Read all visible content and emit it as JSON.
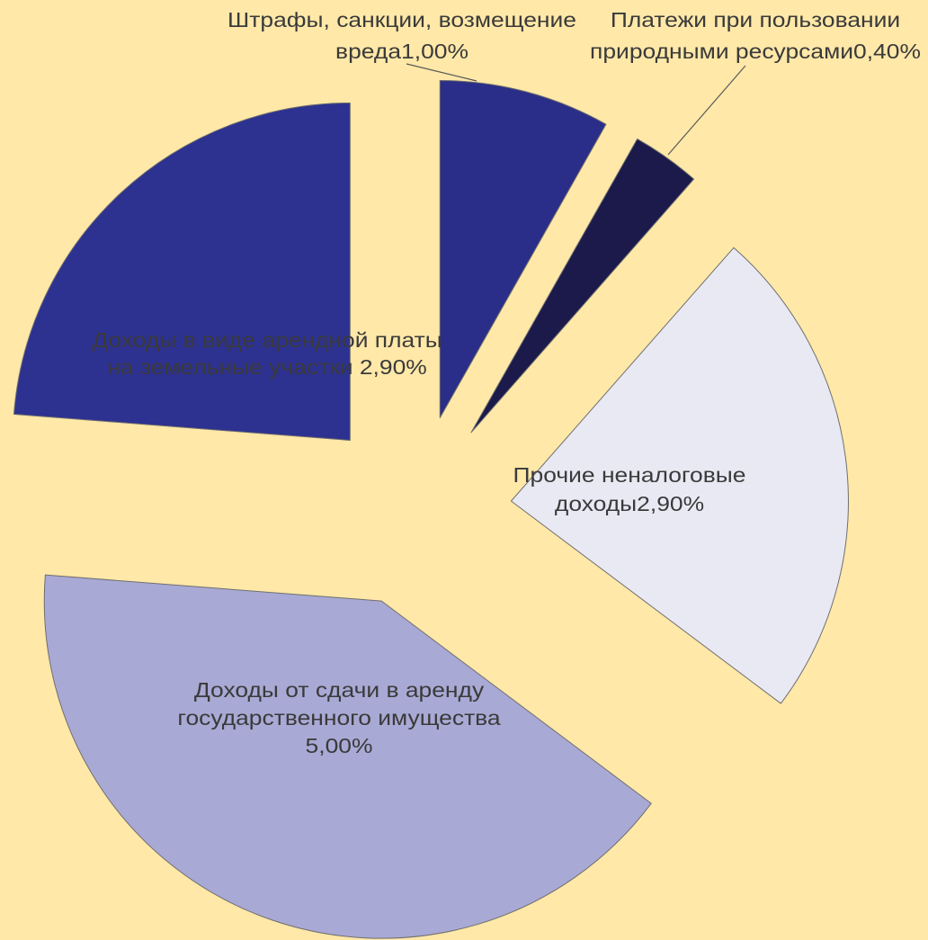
{
  "background": "#FFE8A8",
  "chart_data": {
    "type": "pie",
    "exploded": true,
    "legend": "none",
    "slices": [
      {
        "value": 1.0,
        "label_lines": [
          "Штрафы, санкции, возмещение",
          "вреда1,00%"
        ],
        "color": "#2B2E88",
        "label_position": "outside"
      },
      {
        "value": 0.4,
        "label_lines": [
          "Платежи при пользовании",
          "природными ресурсами0,40%"
        ],
        "color": "#1B1A4B",
        "label_position": "outside"
      },
      {
        "value": 2.9,
        "label_lines": [
          "Прочие неналоговые",
          "доходы2,90%"
        ],
        "color": "#E9E9F4",
        "label_position": "inside"
      },
      {
        "value": 5.0,
        "label_lines": [
          "Доходы от сдачи в аренду",
          "государственного имущества",
          "5,00%"
        ],
        "color": "#A9A9D5",
        "label_position": "inside"
      },
      {
        "value": 2.9,
        "label_lines": [
          "Доходы в виде арендной платы",
          "на земельные участки 2,90%"
        ],
        "color": "#2D3190",
        "label_position": "inside"
      }
    ]
  }
}
